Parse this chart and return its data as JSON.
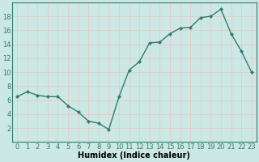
{
  "x": [
    0,
    1,
    2,
    3,
    4,
    5,
    6,
    7,
    8,
    9,
    10,
    11,
    12,
    13,
    14,
    15,
    16,
    17,
    18,
    19,
    20,
    21,
    22,
    23
  ],
  "y": [
    6.5,
    7.2,
    6.7,
    6.5,
    6.5,
    5.2,
    4.3,
    3.0,
    2.7,
    1.8,
    6.5,
    10.3,
    11.5,
    14.2,
    14.3,
    15.5,
    16.3,
    16.4,
    17.8,
    18.0,
    19.0,
    15.5,
    13.0,
    10.0
  ],
  "xlabel": "Humidex (Indice chaleur)",
  "line_color": "#2e7d6e",
  "marker_color": "#2e7d6e",
  "bg_color": "#cce8e4",
  "grid_color": "#e8c8c8",
  "xlim": [
    -0.5,
    23.5
  ],
  "ylim": [
    0,
    20
  ],
  "yticks": [
    2,
    4,
    6,
    8,
    10,
    12,
    14,
    16,
    18
  ],
  "xticks": [
    0,
    1,
    2,
    3,
    4,
    5,
    6,
    7,
    8,
    9,
    10,
    11,
    12,
    13,
    14,
    15,
    16,
    17,
    18,
    19,
    20,
    21,
    22,
    23
  ],
  "xlabel_fontsize": 7,
  "tick_fontsize": 6,
  "figwidth": 3.2,
  "figheight": 2.0,
  "dpi": 100
}
